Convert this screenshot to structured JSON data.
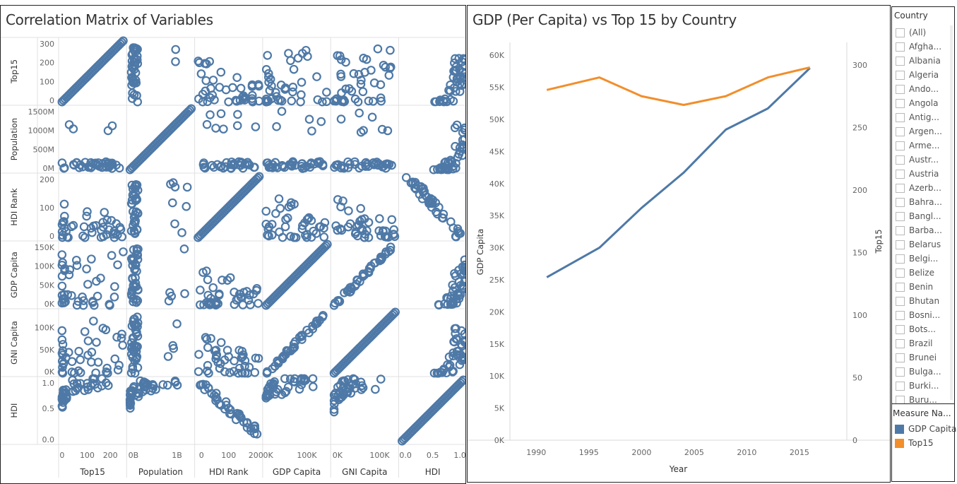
{
  "matrix": {
    "title": "Correlation Matrix of Variables",
    "variables": [
      "Top15",
      "Population",
      "HDI Rank",
      "GDP Capita",
      "GNI Capita",
      "HDI"
    ],
    "ticks": {
      "Top15": [
        "0",
        "100",
        "200",
        "300"
      ],
      "Population": [
        "0M",
        "500M",
        "1000M",
        "1500M"
      ],
      "HDI Rank": [
        "0",
        "100",
        "200"
      ],
      "GDP Capita": [
        "0K",
        "50K",
        "100K",
        "150K"
      ],
      "GNI Capita": [
        "0K",
        "50K",
        "100K"
      ],
      "HDI": [
        "0.0",
        "0.5",
        "1.0"
      ]
    },
    "xticks": {
      "Top15": [
        "0",
        "100",
        "200"
      ],
      "Population": [
        "0B",
        "1B"
      ],
      "HDI Rank": [
        "0",
        "100",
        "200"
      ],
      "GDP Capita": [
        "0K",
        "100K"
      ],
      "GNI Capita": [
        "0K",
        "100K"
      ],
      "HDI": [
        "0.0",
        "0.5",
        "1.0"
      ]
    },
    "mark_color": "#4e79a7"
  },
  "chart_data": [
    {
      "type": "scatter",
      "title": "Correlation Matrix of Variables",
      "variables": [
        "Top15",
        "Population",
        "HDI Rank",
        "GDP Capita",
        "GNI Capita",
        "HDI"
      ],
      "ranges": {
        "Top15": [
          0,
          300
        ],
        "Population": [
          0,
          1500000000
        ],
        "HDI Rank": [
          0,
          200
        ],
        "GDP Capita": [
          0,
          150000
        ],
        "GNI Capita": [
          0,
          130000
        ],
        "HDI": [
          0.1,
          1.0
        ]
      },
      "grid": false
    },
    {
      "type": "line",
      "title": "GDP (Per Capita) vs Top 15 by Country",
      "xlabel": "Year",
      "ylabel": "GDP Capita",
      "y2label": "Top15",
      "x": [
        1991,
        1996,
        2000,
        2004,
        2008,
        2012,
        2016
      ],
      "xticks": [
        "1990",
        "1995",
        "2000",
        "2005",
        "2010",
        "2015"
      ],
      "yticks": [
        "0K",
        "5K",
        "10K",
        "15K",
        "20K",
        "25K",
        "30K",
        "35K",
        "40K",
        "45K",
        "50K",
        "55K",
        "60K"
      ],
      "y2ticks": [
        "0",
        "50",
        "100",
        "150",
        "200",
        "250",
        "300"
      ],
      "ylim": [
        0,
        62000
      ],
      "y2lim": [
        0,
        318
      ],
      "series": [
        {
          "name": "GDP Capita",
          "axis": "left",
          "color": "#4e79a7",
          "values": [
            25400,
            30000,
            36200,
            41700,
            48400,
            51700,
            58000
          ]
        },
        {
          "name": "Top15",
          "axis": "right",
          "color": "#f28e2b",
          "values": [
            280,
            290,
            275,
            268,
            275,
            290,
            298
          ]
        }
      ],
      "legend": "right"
    }
  ],
  "filter": {
    "title": "Country",
    "items": [
      "(All)",
      "Afgha...",
      "Albania",
      "Algeria",
      "Ando...",
      "Angola",
      "Antig...",
      "Argen...",
      "Arme...",
      "Austr...",
      "Austria",
      "Azerb...",
      "Bahra...",
      "Bangl...",
      "Barba...",
      "Belarus",
      "Belgi...",
      "Belize",
      "Benin",
      "Bhutan",
      "Bosni...",
      "Bots...",
      "Brazil",
      "Brunei",
      "Bulga...",
      "Burki...",
      "Buru..."
    ]
  },
  "legend": {
    "title": "Measure Na...",
    "items": [
      {
        "label": "GDP Capita",
        "color": "#4e79a7"
      },
      {
        "label": "Top15",
        "color": "#f28e2b"
      }
    ]
  }
}
